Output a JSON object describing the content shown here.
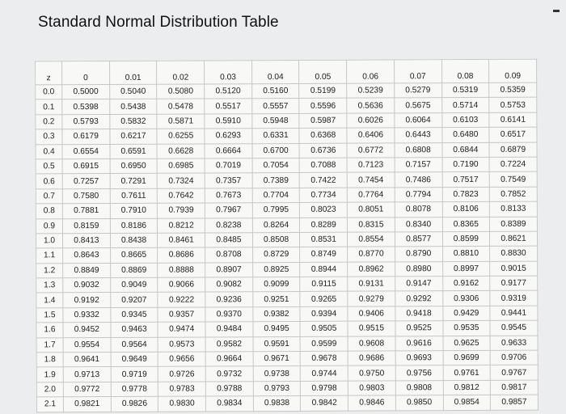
{
  "title": "Standard Normal Distribution Table",
  "columns": [
    "z",
    "0",
    "0.01",
    "0.02",
    "0.03",
    "0.04",
    "0.05",
    "0.06",
    "0.07",
    "0.08",
    "0.09"
  ],
  "rows": [
    {
      "z": "0.0",
      "values": [
        "0.5000",
        "0.5040",
        "0.5080",
        "0.5120",
        "0.5160",
        "0.5199",
        "0.5239",
        "0.5279",
        "0.5319",
        "0.5359"
      ]
    },
    {
      "z": "0.1",
      "values": [
        "0.5398",
        "0.5438",
        "0.5478",
        "0.5517",
        "0.5557",
        "0.5596",
        "0.5636",
        "0.5675",
        "0.5714",
        "0.5753"
      ]
    },
    {
      "z": "0.2",
      "values": [
        "0.5793",
        "0.5832",
        "0.5871",
        "0.5910",
        "0.5948",
        "0.5987",
        "0.6026",
        "0.6064",
        "0.6103",
        "0.6141"
      ]
    },
    {
      "z": "0.3",
      "values": [
        "0.6179",
        "0.6217",
        "0.6255",
        "0.6293",
        "0.6331",
        "0.6368",
        "0.6406",
        "0.6443",
        "0.6480",
        "0.6517"
      ]
    },
    {
      "z": "0.4",
      "values": [
        "0.6554",
        "0.6591",
        "0.6628",
        "0.6664",
        "0.6700",
        "0.6736",
        "0.6772",
        "0.6808",
        "0.6844",
        "0.6879"
      ]
    },
    {
      "z": "0.5",
      "values": [
        "0.6915",
        "0.6950",
        "0.6985",
        "0.7019",
        "0.7054",
        "0.7088",
        "0.7123",
        "0.7157",
        "0.7190",
        "0.7224"
      ]
    },
    {
      "z": "0.6",
      "values": [
        "0.7257",
        "0.7291",
        "0.7324",
        "0.7357",
        "0.7389",
        "0.7422",
        "0.7454",
        "0.7486",
        "0.7517",
        "0.7549"
      ]
    },
    {
      "z": "0.7",
      "values": [
        "0.7580",
        "0.7611",
        "0.7642",
        "0.7673",
        "0.7704",
        "0.7734",
        "0.7764",
        "0.7794",
        "0.7823",
        "0.7852"
      ]
    },
    {
      "z": "0.8",
      "values": [
        "0.7881",
        "0.7910",
        "0.7939",
        "0.7967",
        "0.7995",
        "0.8023",
        "0.8051",
        "0.8078",
        "0.8106",
        "0.8133"
      ]
    },
    {
      "z": "0.9",
      "values": [
        "0.8159",
        "0.8186",
        "0.8212",
        "0.8238",
        "0.8264",
        "0.8289",
        "0.8315",
        "0.8340",
        "0.8365",
        "0.8389"
      ]
    },
    {
      "z": "1.0",
      "values": [
        "0.8413",
        "0.8438",
        "0.8461",
        "0.8485",
        "0.8508",
        "0.8531",
        "0.8554",
        "0.8577",
        "0.8599",
        "0.8621"
      ]
    },
    {
      "z": "1.1",
      "values": [
        "0.8643",
        "0.8665",
        "0.8686",
        "0.8708",
        "0.8729",
        "0.8749",
        "0.8770",
        "0.8790",
        "0.8810",
        "0.8830"
      ]
    },
    {
      "z": "1.2",
      "values": [
        "0.8849",
        "0.8869",
        "0.8888",
        "0.8907",
        "0.8925",
        "0.8944",
        "0.8962",
        "0.8980",
        "0.8997",
        "0.9015"
      ]
    },
    {
      "z": "1.3",
      "values": [
        "0.9032",
        "0.9049",
        "0.9066",
        "0.9082",
        "0.9099",
        "0.9115",
        "0.9131",
        "0.9147",
        "0.9162",
        "0.9177"
      ]
    },
    {
      "z": "1.4",
      "values": [
        "0.9192",
        "0.9207",
        "0.9222",
        "0.9236",
        "0.9251",
        "0.9265",
        "0.9279",
        "0.9292",
        "0.9306",
        "0.9319"
      ]
    },
    {
      "z": "1.5",
      "values": [
        "0.9332",
        "0.9345",
        "0.9357",
        "0.9370",
        "0.9382",
        "0.9394",
        "0.9406",
        "0.9418",
        "0.9429",
        "0.9441"
      ]
    },
    {
      "z": "1.6",
      "values": [
        "0.9452",
        "0.9463",
        "0.9474",
        "0.9484",
        "0.9495",
        "0.9505",
        "0.9515",
        "0.9525",
        "0.9535",
        "0.9545"
      ]
    },
    {
      "z": "1.7",
      "values": [
        "0.9554",
        "0.9564",
        "0.9573",
        "0.9582",
        "0.9591",
        "0.9599",
        "0.9608",
        "0.9616",
        "0.9625",
        "0.9633"
      ]
    },
    {
      "z": "1.8",
      "values": [
        "0.9641",
        "0.9649",
        "0.9656",
        "0.9664",
        "0.9671",
        "0.9678",
        "0.9686",
        "0.9693",
        "0.9699",
        "0.9706"
      ]
    },
    {
      "z": "1.9",
      "values": [
        "0.9713",
        "0.9719",
        "0.9726",
        "0.9732",
        "0.9738",
        "0.9744",
        "0.9750",
        "0.9756",
        "0.9761",
        "0.9767"
      ]
    },
    {
      "z": "2.0",
      "values": [
        "0.9772",
        "0.9778",
        "0.9783",
        "0.9788",
        "0.9793",
        "0.9798",
        "0.9803",
        "0.9808",
        "0.9812",
        "0.9817"
      ]
    },
    {
      "z": "2.1",
      "values": [
        "0.9821",
        "0.9826",
        "0.9830",
        "0.9834",
        "0.9838",
        "0.9842",
        "0.9846",
        "0.9850",
        "0.9854",
        "0.9857"
      ]
    }
  ]
}
